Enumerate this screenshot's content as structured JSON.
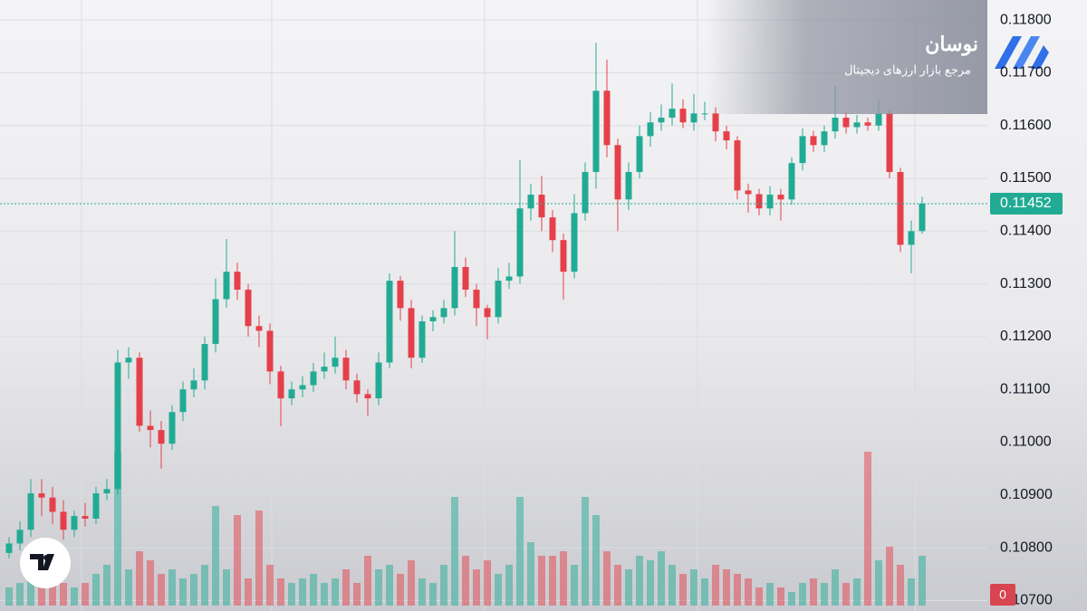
{
  "chart_data": {
    "type": "candlestick",
    "watermark": {
      "name": "نوسان",
      "tagline": "مرجع بازار ارزهای دیجیتال"
    },
    "up_color": "#22ab94",
    "down_color": "#e5404a",
    "ylim": [
      0.1068,
      0.11838
    ],
    "yticks": [
      {
        "value": 0.107,
        "label": "0.10700"
      },
      {
        "value": 0.108,
        "label": "0.10800"
      },
      {
        "value": 0.109,
        "label": "0.10900"
      },
      {
        "value": 0.11,
        "label": "0.11000"
      },
      {
        "value": 0.111,
        "label": "0.11100"
      },
      {
        "value": 0.112,
        "label": "0.11200"
      },
      {
        "value": 0.113,
        "label": "0.11300"
      },
      {
        "value": 0.114,
        "label": "0.11400"
      },
      {
        "value": 0.115,
        "label": "0.11500"
      },
      {
        "value": 0.116,
        "label": "0.11600"
      },
      {
        "value": 0.117,
        "label": "0.11700"
      },
      {
        "value": 0.118,
        "label": "0.11800"
      }
    ],
    "grid": true,
    "last_price": {
      "value": 0.11452,
      "label": "0.11452"
    },
    "indicator_value": 0,
    "open": [
      0.1079,
      0.10808,
      0.10834,
      0.10903,
      0.10895,
      0.10868,
      0.10834,
      0.1086,
      0.10855,
      0.10903,
      0.10911,
      0.11151,
      0.1116,
      0.11031,
      0.11023,
      0.10997,
      0.11057,
      0.111,
      0.11117,
      0.11186,
      0.11271,
      0.11323,
      0.11289,
      0.1122,
      0.11211,
      0.11134,
      0.11083,
      0.111,
      0.11108,
      0.11134,
      0.11143,
      0.1116,
      0.11117,
      0.11091,
      0.11083,
      0.11151,
      0.11306,
      0.11254,
      0.1116,
      0.11229,
      0.11237,
      0.11254,
      0.11332,
      0.11289,
      0.11254,
      0.11237,
      0.11306,
      0.11314,
      0.11443,
      0.11469,
      0.11426,
      0.11383,
      0.11323,
      0.11434,
      0.11512,
      0.11666,
      0.11563,
      0.1146,
      0.11512,
      0.1158,
      0.11606,
      0.11615,
      0.11632,
      0.11606,
      0.11623,
      0.11623,
      0.11589,
      0.11572,
      0.11477,
      0.1147,
      0.11443,
      0.11469,
      0.1146,
      0.11529,
      0.1158,
      0.11563,
      0.11589,
      0.11615,
      0.11597,
      0.11606,
      0.116,
      0.11623,
      0.11512,
      0.11374,
      0.114
    ],
    "high": [
      0.1082,
      0.1085,
      0.1093,
      0.1093,
      0.10915,
      0.1089,
      0.1087,
      0.10885,
      0.10915,
      0.1093,
      0.11175,
      0.1118,
      0.1117,
      0.1106,
      0.1104,
      0.1107,
      0.11115,
      0.1114,
      0.112,
      0.1131,
      0.11385,
      0.1134,
      0.113,
      0.1124,
      0.11225,
      0.11145,
      0.11115,
      0.11125,
      0.1115,
      0.1117,
      0.112,
      0.11175,
      0.1113,
      0.111,
      0.1117,
      0.1132,
      0.11315,
      0.1127,
      0.1124,
      0.1125,
      0.1127,
      0.114,
      0.1135,
      0.113,
      0.1126,
      0.1133,
      0.1134,
      0.11535,
      0.1149,
      0.11505,
      0.1144,
      0.11395,
      0.1147,
      0.1153,
      0.11757,
      0.11725,
      0.11575,
      0.1153,
      0.116,
      0.11625,
      0.1164,
      0.1168,
      0.1165,
      0.1166,
      0.11645,
      0.11635,
      0.116,
      0.1158,
      0.1149,
      0.1148,
      0.11485,
      0.1148,
      0.1154,
      0.11595,
      0.1159,
      0.116,
      0.11675,
      0.11625,
      0.1162,
      0.11615,
      0.1165,
      0.1163,
      0.1152,
      0.1142,
      0.11465
    ],
    "low": [
      0.1078,
      0.10795,
      0.1082,
      0.1086,
      0.10845,
      0.10815,
      0.1082,
      0.1084,
      0.10845,
      0.1089,
      0.109,
      0.1112,
      0.1102,
      0.1099,
      0.1095,
      0.10985,
      0.1104,
      0.11085,
      0.111,
      0.1117,
      0.11255,
      0.1127,
      0.112,
      0.1118,
      0.1111,
      0.1103,
      0.1107,
      0.11085,
      0.11095,
      0.1112,
      0.1113,
      0.111,
      0.11075,
      0.1105,
      0.1107,
      0.1114,
      0.1123,
      0.1114,
      0.1115,
      0.1121,
      0.11225,
      0.1124,
      0.11275,
      0.1122,
      0.11195,
      0.11225,
      0.1129,
      0.113,
      0.1142,
      0.114,
      0.1136,
      0.1127,
      0.1131,
      0.1142,
      0.1148,
      0.1154,
      0.114,
      0.1144,
      0.115,
      0.1156,
      0.1159,
      0.116,
      0.11595,
      0.1159,
      0.1161,
      0.1157,
      0.11555,
      0.1146,
      0.11435,
      0.1143,
      0.1143,
      0.1142,
      0.1145,
      0.11515,
      0.1155,
      0.1155,
      0.11575,
      0.11585,
      0.11585,
      0.1159,
      0.1159,
      0.115,
      0.1136,
      0.1132,
      0.11395
    ],
    "close": [
      0.10808,
      0.10834,
      0.10903,
      0.10895,
      0.10868,
      0.10834,
      0.1086,
      0.10855,
      0.10903,
      0.10911,
      0.11151,
      0.1116,
      0.11031,
      0.11023,
      0.10997,
      0.11057,
      0.111,
      0.11117,
      0.11186,
      0.11271,
      0.11323,
      0.11289,
      0.1122,
      0.11211,
      0.11134,
      0.11083,
      0.111,
      0.11108,
      0.11134,
      0.11143,
      0.1116,
      0.11117,
      0.11091,
      0.11083,
      0.11151,
      0.11306,
      0.11254,
      0.1116,
      0.11229,
      0.11237,
      0.11254,
      0.11332,
      0.11289,
      0.11254,
      0.11237,
      0.11306,
      0.11314,
      0.11443,
      0.11469,
      0.11426,
      0.11383,
      0.11323,
      0.11434,
      0.11512,
      0.11666,
      0.11563,
      0.1146,
      0.11512,
      0.1158,
      0.11606,
      0.11615,
      0.11632,
      0.11606,
      0.11623,
      0.11623,
      0.11589,
      0.11572,
      0.11477,
      0.1147,
      0.11443,
      0.11469,
      0.1146,
      0.11529,
      0.1158,
      0.11563,
      0.11589,
      0.11615,
      0.11597,
      0.11606,
      0.116,
      0.11623,
      0.11512,
      0.11374,
      0.114,
      0.11452
    ],
    "volume": [
      20,
      25,
      30,
      28,
      22,
      25,
      20,
      25,
      35,
      45,
      170,
      40,
      60,
      50,
      35,
      40,
      30,
      35,
      45,
      110,
      40,
      100,
      30,
      105,
      45,
      30,
      25,
      30,
      35,
      25,
      30,
      40,
      25,
      55,
      40,
      45,
      35,
      50,
      30,
      25,
      45,
      120,
      55,
      40,
      50,
      35,
      45,
      120,
      70,
      55,
      55,
      60,
      45,
      120,
      100,
      60,
      45,
      40,
      55,
      50,
      60,
      45,
      35,
      40,
      30,
      45,
      40,
      35,
      30,
      20,
      25,
      20,
      15,
      25,
      30,
      25,
      40,
      25,
      30,
      170,
      50,
      65,
      45,
      30,
      55
    ]
  }
}
